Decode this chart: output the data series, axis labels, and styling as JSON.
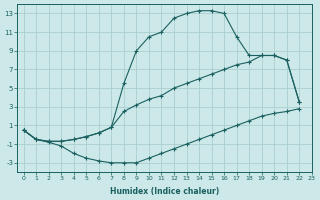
{
  "xlabel": "Humidex (Indice chaleur)",
  "bg_color": "#cce8e8",
  "grid_color": "#aacece",
  "line_color": "#1a6060",
  "top_x": [
    0,
    1,
    2,
    3,
    4,
    5,
    6,
    7,
    8,
    9,
    10,
    11,
    12,
    13,
    14,
    15,
    16,
    17,
    18,
    19,
    20,
    21,
    22
  ],
  "top_y": [
    0.5,
    -0.5,
    -0.7,
    -0.7,
    -0.5,
    -0.2,
    0.2,
    0.8,
    5.5,
    9.0,
    10.5,
    11.0,
    12.5,
    13.0,
    13.3,
    13.3,
    13.0,
    10.5,
    8.5,
    8.5,
    8.5,
    8.0,
    3.5
  ],
  "mid_x": [
    0,
    1,
    2,
    3,
    4,
    5,
    6,
    7,
    8,
    9,
    10,
    11,
    12,
    13,
    14,
    15,
    16,
    17,
    18,
    19,
    20,
    21,
    22
  ],
  "mid_y": [
    0.5,
    -0.5,
    -0.7,
    -0.7,
    -0.5,
    -0.2,
    0.2,
    0.8,
    2.5,
    3.2,
    3.8,
    4.2,
    5.0,
    5.5,
    6.0,
    6.5,
    7.0,
    7.5,
    7.8,
    8.5,
    8.5,
    8.0,
    3.5
  ],
  "bot_x": [
    0,
    1,
    2,
    3,
    4,
    5,
    6,
    7,
    8,
    9,
    10,
    11,
    12,
    13,
    14,
    15,
    16,
    17,
    18,
    19,
    20,
    21,
    22
  ],
  "bot_y": [
    0.5,
    -0.5,
    -0.8,
    -1.2,
    -2.0,
    -2.5,
    -2.8,
    -3.0,
    -3.0,
    -3.0,
    -2.5,
    -2.0,
    -1.5,
    -1.0,
    -0.5,
    0.0,
    0.5,
    1.0,
    1.5,
    2.0,
    2.3,
    2.5,
    2.8
  ],
  "xlim": [
    -0.5,
    23
  ],
  "ylim": [
    -4,
    14
  ],
  "xticks": [
    0,
    1,
    2,
    3,
    4,
    5,
    6,
    7,
    8,
    9,
    10,
    11,
    12,
    13,
    14,
    15,
    16,
    17,
    18,
    19,
    20,
    21,
    22,
    23
  ],
  "yticks": [
    -3,
    -1,
    1,
    3,
    5,
    7,
    9,
    11,
    13
  ]
}
